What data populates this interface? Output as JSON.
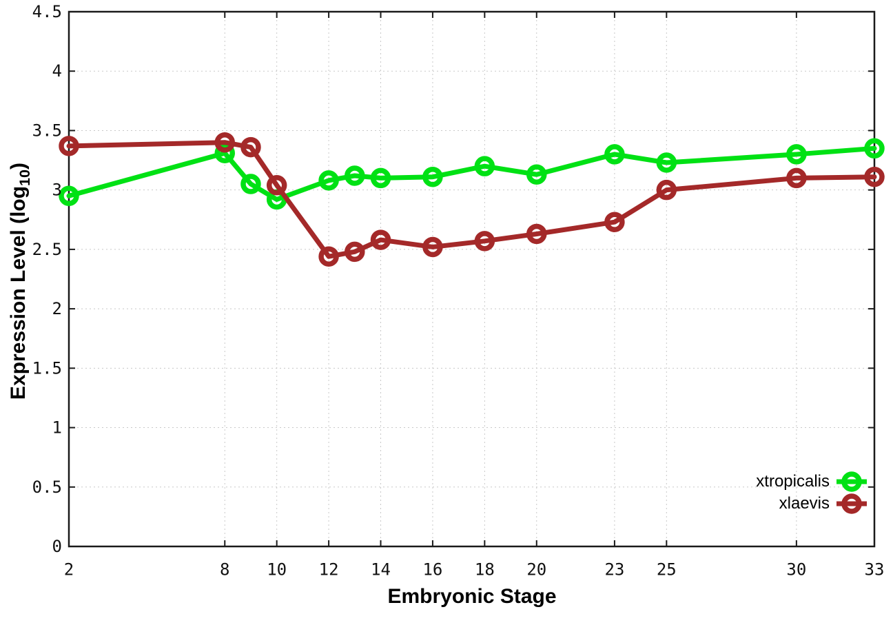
{
  "chart_data": {
    "type": "line",
    "xlabel": "Embryonic Stage",
    "ylabel": "Expression Level (log10)",
    "ylabel_main": "Expression Level (log",
    "ylabel_sub": "10",
    "ylabel_close": ")",
    "x": [
      2,
      8,
      9,
      10,
      12,
      13,
      14,
      16,
      18,
      20,
      23,
      25,
      30,
      33
    ],
    "x_ticks": [
      2,
      8,
      10,
      12,
      14,
      16,
      18,
      20,
      23,
      25,
      30,
      33
    ],
    "y_ticks": [
      0,
      0.5,
      1,
      1.5,
      2,
      2.5,
      3,
      3.5,
      4,
      4.5
    ],
    "xlim": [
      2,
      33
    ],
    "ylim": [
      0,
      4.5
    ],
    "grid": true,
    "legend_position": "inside-bottom-right",
    "marker": "open-circle",
    "series": [
      {
        "name": "xtropicalis",
        "color": "#00e114",
        "values": [
          2.95,
          3.31,
          3.05,
          2.92,
          3.08,
          3.12,
          3.1,
          3.11,
          3.2,
          3.13,
          3.3,
          3.23,
          3.3,
          3.35
        ]
      },
      {
        "name": "xlaevis",
        "color": "#a42929",
        "values": [
          3.37,
          3.4,
          3.36,
          3.04,
          2.44,
          2.48,
          2.58,
          2.52,
          2.57,
          2.63,
          2.73,
          3.0,
          3.1,
          3.11
        ]
      }
    ],
    "colors": {
      "border": "#1a1a1a",
      "grid": "#c8c8c8",
      "tick_label": "#111111",
      "background": "#ffffff"
    }
  }
}
